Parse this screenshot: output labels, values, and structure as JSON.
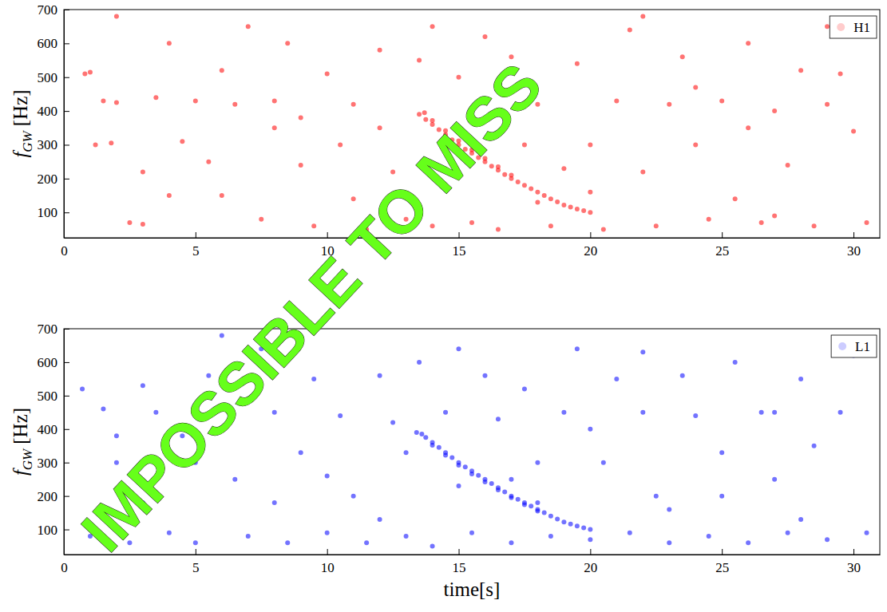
{
  "chart_data": [
    {
      "type": "scatter",
      "series": [
        {
          "name": "H1",
          "color": "#ff0000",
          "x": [
            0.8,
            1.0,
            1.5,
            2,
            1.2,
            1.8,
            2.5,
            3,
            3.5,
            4,
            4.5,
            5,
            5.5,
            6,
            6.5,
            7,
            7.5,
            8,
            8.5,
            9,
            9.5,
            10,
            10.5,
            11,
            11.5,
            12,
            12.5,
            13,
            13.5,
            14,
            15,
            15.5,
            16,
            16.5,
            17,
            17.5,
            18,
            18.5,
            19,
            19.5,
            20,
            20.5,
            21,
            21.5,
            22,
            22.5,
            23,
            23.5,
            24,
            24.5,
            25,
            25.5,
            26,
            26.5,
            27,
            27.5,
            28,
            28.5,
            29,
            29.5,
            30,
            30.5,
            3,
            8,
            12,
            20,
            26,
            6,
            16,
            22,
            11,
            27,
            4,
            9,
            14,
            24,
            18,
            2,
            29,
            13.5,
            13.75,
            14,
            14.25,
            14.5,
            14.75,
            15,
            15.25,
            15.5,
            15.75,
            16,
            16.25,
            16.5,
            16.75,
            17,
            17.25,
            17.5,
            17.75,
            18,
            18.25,
            18.5,
            18.75,
            19,
            19.25,
            19.5,
            19.75,
            20,
            13.7,
            14,
            14.5,
            15,
            15.5,
            16,
            16.5,
            17
          ],
          "values": [
            510,
            515,
            430,
            425,
            300,
            305,
            70,
            65,
            440,
            600,
            310,
            430,
            250,
            150,
            420,
            650,
            80,
            430,
            600,
            240,
            60,
            510,
            300,
            420,
            50,
            580,
            220,
            80,
            550,
            60,
            500,
            70,
            430,
            50,
            560,
            300,
            420,
            60,
            230,
            540,
            300,
            50,
            430,
            640,
            220,
            60,
            420,
            560,
            300,
            80,
            430,
            140,
            600,
            70,
            400,
            240,
            520,
            60,
            420,
            510,
            340,
            70,
            220,
            350,
            350,
            160,
            350,
            520,
            620,
            680,
            140,
            90,
            150,
            380,
            650,
            470,
            130,
            680,
            650,
            390,
            375,
            360,
            345,
            330,
            315,
            300,
            287,
            275,
            262,
            250,
            237,
            225,
            212,
            200,
            190,
            180,
            170,
            160,
            150,
            140,
            131,
            122,
            116,
            110,
            105,
            100,
            395,
            372,
            342,
            312,
            285,
            260,
            235,
            210
          ]
        }
      ],
      "xlim": [
        0,
        31
      ],
      "xticks": [
        0,
        5,
        10,
        15,
        20,
        25,
        30
      ],
      "ylim": [
        25,
        700
      ],
      "yticks": [
        100,
        200,
        300,
        400,
        500,
        600,
        700
      ],
      "ylabel": {
        "text": "f",
        "subscript": "GW",
        "unit": "[Hz]"
      },
      "legend": "top-right",
      "marker": "circle"
    },
    {
      "type": "scatter",
      "series": [
        {
          "name": "L1",
          "color": "#0000ff",
          "x": [
            0.7,
            1,
            1.5,
            2,
            2.5,
            3,
            3.5,
            4,
            4.5,
            5,
            5.5,
            6,
            6.5,
            7,
            7.5,
            8,
            8.5,
            9,
            9.5,
            10,
            10.5,
            11,
            11.5,
            12,
            12.5,
            13,
            13.5,
            14,
            14.5,
            15,
            15.5,
            16,
            16.5,
            17,
            17.5,
            18,
            18.5,
            19,
            19.5,
            20,
            20.5,
            21,
            21.5,
            22,
            22.5,
            23,
            23.5,
            24,
            24.5,
            25,
            25.5,
            26,
            26.5,
            27,
            27.5,
            28,
            28.5,
            29,
            29.5,
            30,
            30.5,
            3,
            8,
            13,
            18,
            23,
            27,
            10,
            5,
            20,
            25,
            15,
            6,
            12,
            28,
            2,
            22,
            17,
            13.4,
            13.75,
            14,
            14.25,
            14.5,
            14.75,
            15,
            15.25,
            15.5,
            15.75,
            16,
            16.25,
            16.5,
            16.75,
            17,
            17.25,
            17.5,
            17.75,
            18,
            18.25,
            18.5,
            18.75,
            19,
            19.25,
            19.5,
            19.75,
            20,
            13.6,
            14,
            14.5,
            15,
            15.5,
            16,
            16.5,
            17,
            17.5,
            18
          ],
          "values": [
            520,
            80,
            460,
            300,
            60,
            530,
            450,
            90,
            380,
            60,
            560,
            460,
            250,
            80,
            640,
            450,
            60,
            330,
            550,
            90,
            440,
            200,
            60,
            560,
            420,
            80,
            600,
            50,
            450,
            230,
            90,
            560,
            430,
            60,
            520,
            300,
            80,
            450,
            640,
            70,
            300,
            550,
            90,
            450,
            200,
            60,
            560,
            440,
            80,
            330,
            600,
            60,
            450,
            250,
            90,
            550,
            350,
            70,
            450,
            620,
            90,
            180,
            180,
            330,
            180,
            160,
            450,
            260,
            300,
            400,
            200,
            640,
            680,
            130,
            130,
            380,
            630,
            250,
            390,
            375,
            360,
            345,
            330,
            315,
            300,
            287,
            275,
            262,
            250,
            237,
            225,
            212,
            200,
            190,
            180,
            170,
            160,
            150,
            140,
            131,
            122,
            116,
            110,
            105,
            100,
            385,
            352,
            322,
            292,
            266,
            242,
            218,
            195,
            174,
            155
          ]
        }
      ],
      "xlim": [
        0,
        31
      ],
      "xticks": [
        0,
        5,
        10,
        15,
        20,
        25,
        30
      ],
      "ylim": [
        25,
        700
      ],
      "yticks": [
        100,
        200,
        300,
        400,
        500,
        600,
        700
      ],
      "xlabel": "time[s]",
      "ylabel": {
        "text": "f",
        "subscript": "GW",
        "unit": "[Hz]"
      },
      "legend": "top-right",
      "marker": "circle"
    }
  ],
  "annotation": "IMPOSSIBLE TO MISS"
}
